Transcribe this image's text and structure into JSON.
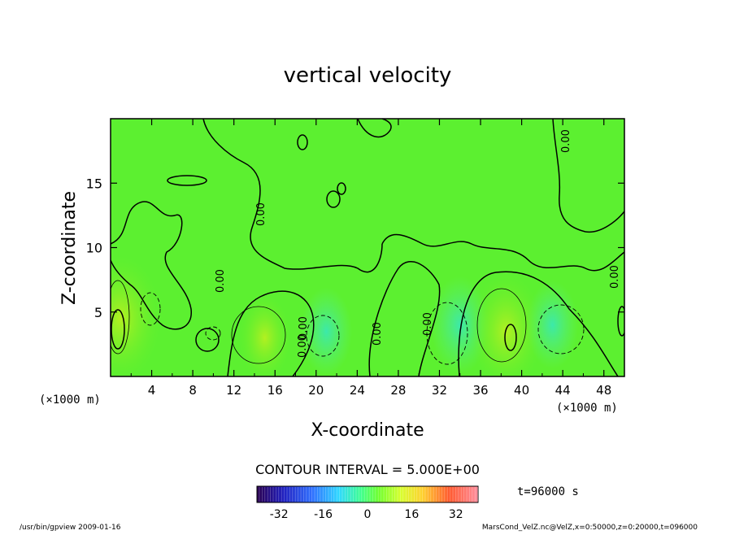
{
  "chart_data": {
    "type": "contour",
    "title": "vertical velocity",
    "xlabel": "X-coordinate",
    "ylabel": "Z-coordinate",
    "x_unit": "(×1000 m)",
    "x_unit_left": "(×1000 m)",
    "xlim": [
      0,
      50
    ],
    "ylim": [
      0,
      20
    ],
    "x_ticks": [
      4,
      8,
      12,
      16,
      20,
      24,
      28,
      32,
      36,
      40,
      44,
      48
    ],
    "x_tick_labels": [
      "4",
      "8",
      "12",
      "16",
      "20",
      "24",
      "28",
      "32",
      "36",
      "40",
      "44",
      "48"
    ],
    "y_ticks": [
      5,
      10,
      15
    ],
    "y_tick_labels": [
      "5",
      "10",
      "15"
    ],
    "contour_interval_text": "CONTOUR INTERVAL = 5.000E+00",
    "time_text": "t=96000 s",
    "contour_labels": [
      "0.00",
      "0.00",
      "0.00",
      "0.00",
      "0.00",
      "0.00",
      "0.00",
      "0.00"
    ],
    "colorbar": {
      "min": -40,
      "max": 40,
      "tick_values": [
        -32,
        -16,
        0,
        16,
        32
      ],
      "tick_labels": [
        "-32",
        "-16",
        "0",
        "16",
        "32"
      ]
    },
    "features": [
      {
        "kind": "updraft",
        "x": 1,
        "z": 4.5,
        "value": 16
      },
      {
        "kind": "updraft",
        "x": 15,
        "z": 3,
        "value": 8
      },
      {
        "kind": "downdraft",
        "x": 21,
        "z": 3.5,
        "value": -8
      },
      {
        "kind": "downdraft",
        "x": 34,
        "z": 4,
        "value": -10
      },
      {
        "kind": "updraft",
        "x": 38.5,
        "z": 3.5,
        "value": 14
      },
      {
        "kind": "downdraft",
        "x": 43,
        "z": 4,
        "value": -8
      }
    ]
  },
  "footer": {
    "left": "/usr/bin/gpview  2009-01-16",
    "right": "MarsCond_VelZ.nc@VelZ,x=0:50000,z=0:20000,t=096000"
  }
}
